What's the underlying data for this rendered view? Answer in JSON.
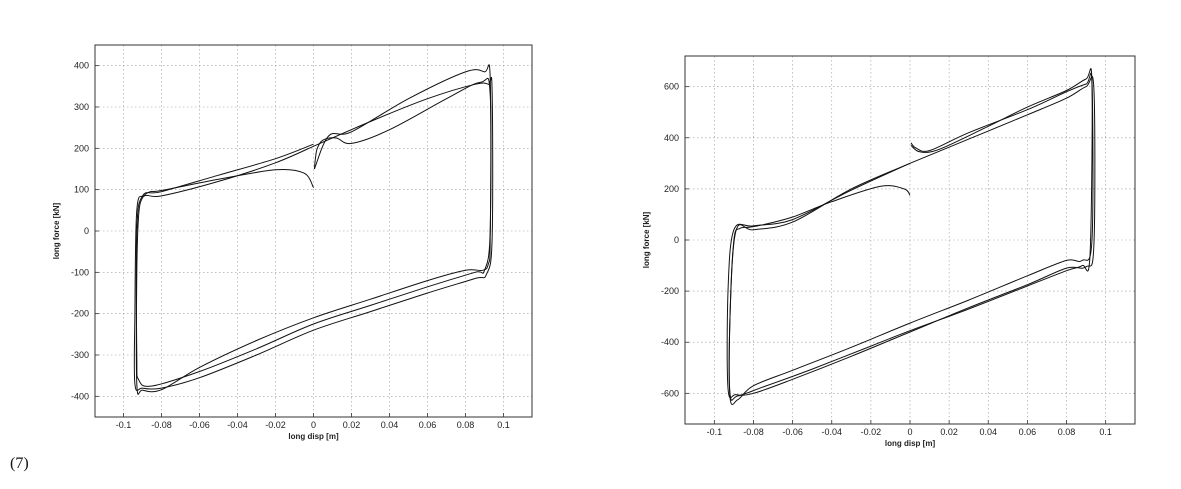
{
  "equation_number": "(7)",
  "chart_data": [
    {
      "type": "line",
      "title": "",
      "xlabel": "long disp [m]",
      "ylabel": "long force [kN]",
      "xlim": [
        -0.115,
        0.115
      ],
      "ylim": [
        -450,
        450
      ],
      "xticks": [
        -0.1,
        -0.08,
        -0.06,
        -0.04,
        -0.02,
        0,
        0.02,
        0.04,
        0.06,
        0.08,
        0.1
      ],
      "xtick_labels": [
        "-0.1",
        "-0.08",
        "-0.06",
        "-0.04",
        "-0.02",
        "0",
        "0.02",
        "0.04",
        "0.06",
        "0.08",
        "0.1"
      ],
      "yticks": [
        -400,
        -300,
        -200,
        -100,
        0,
        100,
        200,
        300,
        400
      ],
      "ytick_labels": [
        "-400",
        "-300",
        "-200",
        "-100",
        "0",
        "100",
        "200",
        "300",
        "400"
      ],
      "grid": true,
      "series": [
        {
          "x": [
            0,
            -0.005,
            -0.02,
            -0.05,
            -0.08,
            -0.086,
            -0.09,
            -0.092,
            -0.093,
            -0.093,
            -0.09,
            -0.08,
            -0.06,
            -0.03,
            0,
            0.03,
            0.06,
            0.08,
            0.089,
            0.092,
            0.093,
            0.093,
            0.088,
            0.07,
            0.04,
            0.02,
            0.012,
            0.005,
            0.002,
            0.001,
            0.0005
          ],
          "y": [
            105,
            140,
            148,
            125,
            98,
            95,
            80,
            40,
            -100,
            -370,
            -385,
            -384,
            -330,
            -265,
            -210,
            -165,
            -120,
            -95,
            -95,
            -80,
            -20,
            330,
            360,
            320,
            245,
            212,
            225,
            220,
            200,
            175,
            150
          ]
        },
        {
          "x": [
            0.0005,
            0.008,
            0.02,
            0.05,
            0.08,
            0.09,
            0.093,
            0.093,
            0.09,
            0.085,
            0.06,
            0.03,
            0,
            -0.03,
            -0.06,
            -0.085,
            -0.092,
            -0.093,
            -0.093,
            -0.09,
            -0.08,
            -0.05,
            -0.02,
            0
          ],
          "y": [
            150,
            230,
            240,
            320,
            385,
            385,
            370,
            0,
            -95,
            -100,
            -135,
            -180,
            -225,
            -285,
            -340,
            -375,
            -360,
            -300,
            0,
            85,
            95,
            135,
            175,
            210
          ]
        },
        {
          "x": [
            0,
            0.03,
            0.06,
            0.085,
            0.092,
            0.094,
            0.094,
            0.091,
            0.085,
            0.06,
            0.03,
            0,
            -0.03,
            -0.06,
            -0.08,
            -0.09,
            -0.094,
            -0.094,
            -0.093,
            -0.089,
            -0.08,
            -0.05,
            -0.02,
            0
          ],
          "y": [
            205,
            265,
            320,
            355,
            355,
            340,
            -20,
            -105,
            -115,
            -150,
            -195,
            -240,
            -300,
            -355,
            -380,
            -380,
            -370,
            -200,
            50,
            85,
            85,
            120,
            165,
            205
          ]
        }
      ]
    },
    {
      "type": "line",
      "title": "",
      "xlabel": "long disp [m]",
      "ylabel": "long force [kN]",
      "xlim": [
        -0.115,
        0.115
      ],
      "ylim": [
        -720,
        720
      ],
      "xticks": [
        -0.1,
        -0.08,
        -0.06,
        -0.04,
        -0.02,
        0,
        0.02,
        0.04,
        0.06,
        0.08,
        0.1
      ],
      "xtick_labels": [
        "-0.1",
        "-0.08",
        "-0.06",
        "-0.04",
        "-0.02",
        "0",
        "0.02",
        "0.04",
        "0.06",
        "0.08",
        "0.1"
      ],
      "yticks": [
        -600,
        -400,
        -200,
        0,
        200,
        400,
        600
      ],
      "ytick_labels": [
        "-600",
        "-400",
        "-200",
        "0",
        "200",
        "400",
        "600"
      ],
      "grid": true,
      "series": [
        {
          "x": [
            0,
            -0.003,
            -0.015,
            -0.04,
            -0.06,
            -0.075,
            -0.082,
            -0.087,
            -0.09,
            -0.092,
            -0.092,
            -0.088,
            -0.075,
            -0.05,
            -0.02,
            0,
            0.03,
            0.06,
            0.08,
            0.088,
            0.092,
            0.093,
            0.09,
            0.08,
            0.06,
            0.03,
            0.01,
            0.003,
            0.0005
          ],
          "y": [
            175,
            200,
            210,
            150,
            90,
            60,
            50,
            45,
            0,
            -300,
            -600,
            -610,
            -575,
            -505,
            -415,
            -355,
            -270,
            -180,
            -120,
            -100,
            -60,
            600,
            610,
            580,
            510,
            420,
            350,
            360,
            380
          ]
        },
        {
          "x": [
            0.0005,
            0.005,
            0.015,
            0.04,
            0.06,
            0.08,
            0.09,
            0.093,
            0.093,
            0.088,
            0.08,
            0.06,
            0.03,
            0,
            -0.03,
            -0.06,
            -0.08,
            -0.088,
            -0.092,
            -0.092,
            -0.089,
            -0.08,
            -0.06,
            -0.03,
            0
          ],
          "y": [
            370,
            345,
            355,
            445,
            520,
            585,
            630,
            620,
            0,
            -80,
            -80,
            -140,
            -235,
            -325,
            -420,
            -510,
            -570,
            -625,
            -615,
            -300,
            35,
            40,
            70,
            200,
            300
          ]
        },
        {
          "x": [
            0,
            0.03,
            0.06,
            0.08,
            0.09,
            0.094,
            0.094,
            0.09,
            0.08,
            0.06,
            0.03,
            0,
            -0.03,
            -0.06,
            -0.08,
            -0.089,
            -0.093,
            -0.093,
            -0.09,
            -0.08,
            -0.06,
            -0.03,
            0
          ],
          "y": [
            300,
            395,
            490,
            555,
            600,
            590,
            -20,
            -105,
            -110,
            -175,
            -265,
            -360,
            -455,
            -545,
            -600,
            -605,
            -580,
            -200,
            40,
            55,
            80,
            195,
            300
          ]
        }
      ]
    }
  ]
}
